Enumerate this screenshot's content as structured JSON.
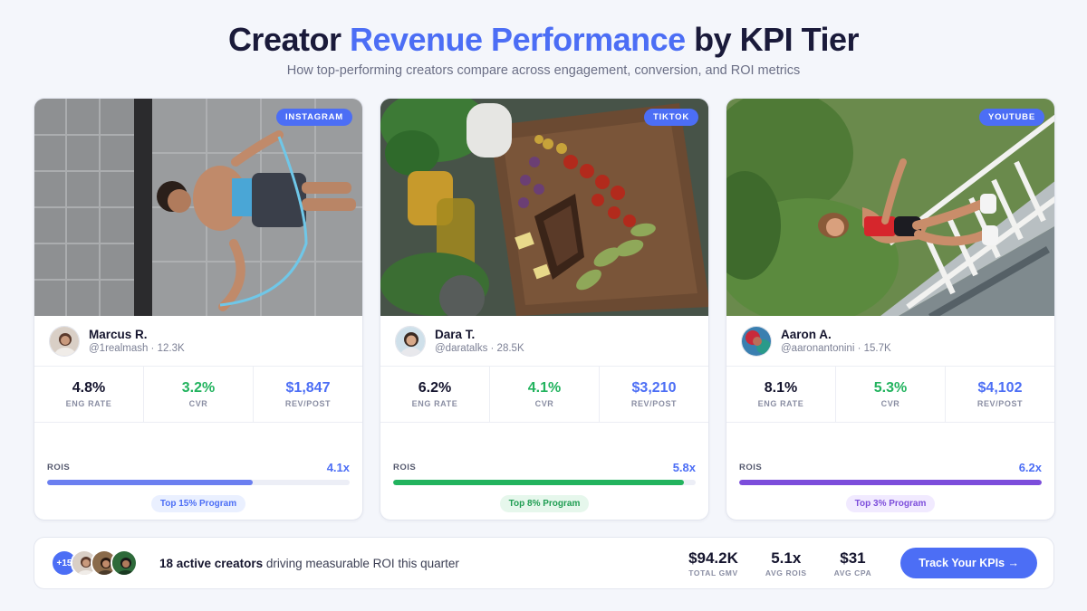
{
  "header": {
    "title_part1": "Creator ",
    "title_accent": "Revenue Performance",
    "title_part2": " by KPI Tier",
    "subtitle": "How top-performing creators compare across engagement, conversion, and ROI metrics"
  },
  "cards": [
    {
      "platform": "INSTAGRAM",
      "name": "Marcus R.",
      "handle": "@1realmash · 12.3K",
      "stats": [
        {
          "value": "4.8%",
          "label": "ENG RATE"
        },
        {
          "value": "3.2%",
          "label": "CVR"
        },
        {
          "value": "$1,847",
          "label": "REV/POST"
        }
      ],
      "rois_label": "ROIS",
      "rois_value": "4.1x",
      "rois_fill": 0.68,
      "tier": "Top 15% Program",
      "colors": {
        "bar": "#6b7ff0",
        "pill_bg": "#eaf0ff",
        "pill_text": "#4c6ef5"
      }
    },
    {
      "platform": "TIKTOK",
      "name": "Dara T.",
      "handle": "@daratalks · 28.5K",
      "stats": [
        {
          "value": "6.2%",
          "label": "ENG RATE"
        },
        {
          "value": "4.1%",
          "label": "CVR"
        },
        {
          "value": "$3,210",
          "label": "REV/POST"
        }
      ],
      "rois_label": "ROIS",
      "rois_value": "5.8x",
      "rois_fill": 0.96,
      "tier": "Top 8% Program",
      "colors": {
        "bar": "#22b35e",
        "pill_bg": "#e6f7ec",
        "pill_text": "#1f9d52"
      }
    },
    {
      "platform": "YOUTUBE",
      "name": "Aaron A.",
      "handle": "@aaronantonini · 15.7K",
      "stats": [
        {
          "value": "8.1%",
          "label": "ENG RATE"
        },
        {
          "value": "5.3%",
          "label": "CVR"
        },
        {
          "value": "$4,102",
          "label": "REV/POST"
        }
      ],
      "rois_label": "ROIS",
      "rois_value": "6.2x",
      "rois_fill": 1.0,
      "tier": "Top 3% Program",
      "colors": {
        "bar": "#7c4ddb",
        "pill_bg": "#f1eaff",
        "pill_text": "#7c4ddb"
      }
    }
  ],
  "footer": {
    "avatar_count": "+15",
    "text_bold": "18 active creators",
    "text_rest": " driving measurable ROI this quarter",
    "stats": [
      {
        "value": "$94.2K",
        "label": "TOTAL GMV"
      },
      {
        "value": "5.1x",
        "label": "AVG ROIS"
      },
      {
        "value": "$31",
        "label": "AVG CPA"
      }
    ],
    "cta_label": "Track Your KPIs →"
  },
  "theme": {
    "accent": "#4c6ef5",
    "green": "#22b35e",
    "purple": "#7c4ddb"
  }
}
